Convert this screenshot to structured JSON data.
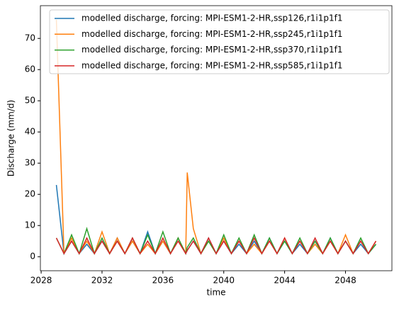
{
  "chart_data": {
    "type": "line",
    "x_label": "time",
    "y_label": "Discharge (mm/d)",
    "x": [
      2029,
      2029.5,
      2030,
      2030.5,
      2031,
      2031.5,
      2032,
      2032.5,
      2033,
      2033.5,
      2034,
      2034.5,
      2035,
      2035.5,
      2036,
      2036.5,
      2037,
      2037.5,
      2037.6,
      2038,
      2038.5,
      2039,
      2039.5,
      2040,
      2040.5,
      2041,
      2041.5,
      2042,
      2042.5,
      2043,
      2043.5,
      2044,
      2044.5,
      2045,
      2045.5,
      2046,
      2046.5,
      2047,
      2047.5,
      2048,
      2048.5,
      2049,
      2049.5,
      2050
    ],
    "series": [
      {
        "name": "modelled discharge, forcing: MPI-ESM1-2-HR,ssp126,r1i1p1f1",
        "color": "#1f77b4",
        "values": [
          23,
          1,
          5,
          1,
          4,
          1,
          5,
          1,
          6,
          1,
          5,
          1,
          8,
          1,
          5,
          1,
          6,
          1,
          2,
          5,
          1,
          6,
          1,
          5,
          1,
          4,
          1,
          5,
          1,
          6,
          1,
          5,
          1,
          4,
          1,
          5,
          1,
          6,
          1,
          5,
          1,
          4,
          1,
          4
        ]
      },
      {
        "name": "modelled discharge, forcing: MPI-ESM1-2-HR,ssp245,r1i1p1f1",
        "color": "#ff7f0e",
        "values": [
          76,
          1,
          6,
          1,
          5,
          1,
          8,
          1,
          6,
          1,
          5,
          1,
          4,
          1,
          5,
          1,
          6,
          1,
          27,
          9,
          1,
          5,
          1,
          6,
          1,
          5,
          1,
          4,
          1,
          5,
          1,
          6,
          1,
          5,
          1,
          4,
          1,
          5,
          1,
          7,
          1,
          5,
          1,
          5
        ]
      },
      {
        "name": "modelled discharge, forcing: MPI-ESM1-2-HR,ssp370,r1i1p1f1",
        "color": "#2ca02c",
        "values": [
          6,
          1,
          7,
          1,
          9,
          1,
          6,
          1,
          5,
          1,
          6,
          1,
          7,
          1,
          8,
          1,
          6,
          1,
          3,
          6,
          1,
          5,
          1,
          7,
          1,
          6,
          1,
          7,
          1,
          6,
          1,
          5,
          1,
          6,
          1,
          5,
          1,
          6,
          1,
          5,
          1,
          6,
          1,
          4
        ]
      },
      {
        "name": "modelled discharge, forcing: MPI-ESM1-2-HR,ssp585,r1i1p1f1",
        "color": "#d62728",
        "values": [
          6,
          1,
          5,
          1,
          6,
          1,
          5,
          1,
          5,
          1,
          6,
          1,
          5,
          1,
          6,
          1,
          5,
          1,
          2,
          5,
          1,
          6,
          1,
          5,
          1,
          5,
          1,
          6,
          1,
          5,
          1,
          6,
          1,
          5,
          1,
          6,
          1,
          5,
          1,
          5,
          1,
          5,
          1,
          5
        ]
      }
    ],
    "xlim": [
      2027.95,
      2051.05
    ],
    "xticks": [
      2028,
      2032,
      2036,
      2040,
      2044,
      2048
    ],
    "ylim": [
      -4.5,
      80.5
    ],
    "yticks": [
      0,
      10,
      20,
      30,
      40,
      50,
      60,
      70
    ],
    "legend": "upper-right"
  }
}
